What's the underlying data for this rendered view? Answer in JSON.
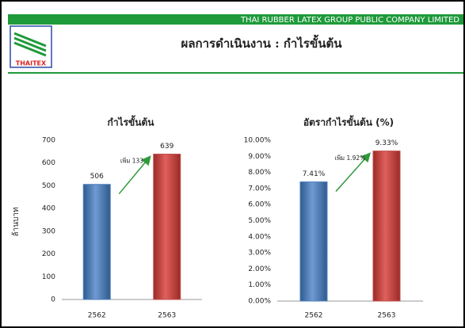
{
  "header": {
    "company": "THAI RUBBER LATEX GROUP PUBLIC COMPANY LIMITED",
    "logo": "THAITEX",
    "title": "ผลการดำเนินงาน : กำไรขั้นต้น"
  },
  "chart_data": [
    {
      "type": "bar",
      "title": "กำไรขั้นต้น",
      "ylabel": "ล้านบาท",
      "categories": [
        "2562",
        "2563"
      ],
      "values": [
        506,
        639
      ],
      "colors": [
        "#4f81bd",
        "#c0504d"
      ],
      "annotation": "เพิ่ม 133",
      "ylim": [
        0,
        700
      ],
      "yticks": [
        0,
        100,
        200,
        300,
        400,
        500,
        600,
        700
      ]
    },
    {
      "type": "bar",
      "title": "อัตรากำไรขั้นต้น (%)",
      "categories": [
        "2562",
        "2563"
      ],
      "values": [
        7.41,
        9.33
      ],
      "value_labels": [
        "7.41%",
        "9.33%"
      ],
      "colors": [
        "#4f81bd",
        "#c0504d"
      ],
      "annotation": "เพิ่ม 1.92%",
      "ylim": [
        0,
        10
      ],
      "yticks": [
        {
          "value": 0,
          "label": "0.00%"
        },
        {
          "value": 1,
          "label": "1.00%"
        },
        {
          "value": 2,
          "label": "2.00%"
        },
        {
          "value": 3,
          "label": "3.00%"
        },
        {
          "value": 4,
          "label": "4.00%"
        },
        {
          "value": 5,
          "label": "5.00%"
        },
        {
          "value": 6,
          "label": "6.00%"
        },
        {
          "value": 7,
          "label": "7.00%"
        },
        {
          "value": 8,
          "label": "8.00%"
        },
        {
          "value": 9,
          "label": "9.00%"
        },
        {
          "value": 10,
          "label": "10.00%"
        }
      ]
    }
  ]
}
